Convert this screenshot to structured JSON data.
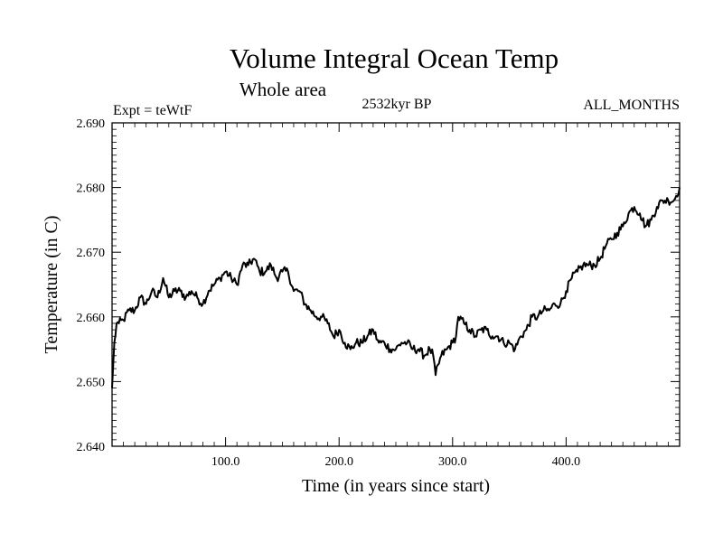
{
  "chart_data": {
    "type": "line",
    "title": "Volume Integral Ocean Temp",
    "subtitle": "Whole area",
    "annotations": {
      "experiment": "Expt = teWtF",
      "period": "2532kyr BP",
      "months": "ALL_MONTHS"
    },
    "xlabel": "Time (in years since start)",
    "ylabel": "Temperature (in C)",
    "xlim": [
      0,
      500
    ],
    "ylim": [
      2.64,
      2.69
    ],
    "x_ticks": [
      100,
      200,
      300,
      400
    ],
    "x_tick_labels": [
      "100.0",
      "200.0",
      "300.0",
      "400.0"
    ],
    "y_ticks": [
      2.64,
      2.65,
      2.66,
      2.67,
      2.68,
      2.69
    ],
    "y_tick_labels": [
      "2.640",
      "2.650",
      "2.660",
      "2.670",
      "2.680",
      "2.690"
    ],
    "series": [
      {
        "name": "Volume integral ocean temperature",
        "color": "#000000",
        "x": [
          0,
          2,
          4,
          6,
          10,
          15,
          20,
          25,
          30,
          35,
          40,
          45,
          50,
          55,
          60,
          65,
          70,
          75,
          80,
          85,
          90,
          95,
          100,
          105,
          110,
          115,
          120,
          125,
          130,
          135,
          140,
          145,
          150,
          155,
          160,
          165,
          170,
          175,
          180,
          185,
          190,
          195,
          200,
          205,
          210,
          215,
          220,
          225,
          230,
          235,
          240,
          245,
          250,
          255,
          260,
          265,
          270,
          275,
          280,
          283,
          285,
          290,
          295,
          300,
          303,
          305,
          310,
          315,
          320,
          325,
          330,
          335,
          340,
          345,
          350,
          355,
          360,
          365,
          370,
          375,
          380,
          385,
          390,
          395,
          400,
          405,
          410,
          415,
          420,
          425,
          430,
          435,
          440,
          445,
          450,
          455,
          460,
          465,
          470,
          475,
          480,
          485,
          490,
          495,
          500
        ],
        "y": [
          2.649,
          2.656,
          2.659,
          2.659,
          2.6595,
          2.661,
          2.661,
          2.663,
          2.662,
          2.664,
          2.663,
          2.666,
          2.663,
          2.664,
          2.664,
          2.663,
          2.664,
          2.663,
          2.662,
          2.664,
          2.665,
          2.666,
          2.667,
          2.666,
          2.665,
          2.668,
          2.668,
          2.669,
          2.667,
          2.667,
          2.668,
          2.666,
          2.667,
          2.667,
          2.664,
          2.664,
          2.662,
          2.661,
          2.66,
          2.66,
          2.659,
          2.657,
          2.658,
          2.656,
          2.655,
          2.656,
          2.656,
          2.657,
          2.658,
          2.656,
          2.656,
          2.655,
          2.655,
          2.656,
          2.656,
          2.655,
          2.655,
          2.654,
          2.655,
          2.654,
          2.651,
          2.654,
          2.655,
          2.656,
          2.657,
          2.66,
          2.659,
          2.658,
          2.657,
          2.658,
          2.658,
          2.657,
          2.657,
          2.656,
          2.656,
          2.655,
          2.657,
          2.658,
          2.66,
          2.66,
          2.661,
          2.661,
          2.662,
          2.662,
          2.664,
          2.666,
          2.667,
          2.668,
          2.668,
          2.668,
          2.669,
          2.671,
          2.672,
          2.673,
          2.674,
          2.676,
          2.677,
          2.676,
          2.674,
          2.675,
          2.677,
          2.678,
          2.678,
          2.678,
          2.68
        ]
      }
    ]
  }
}
